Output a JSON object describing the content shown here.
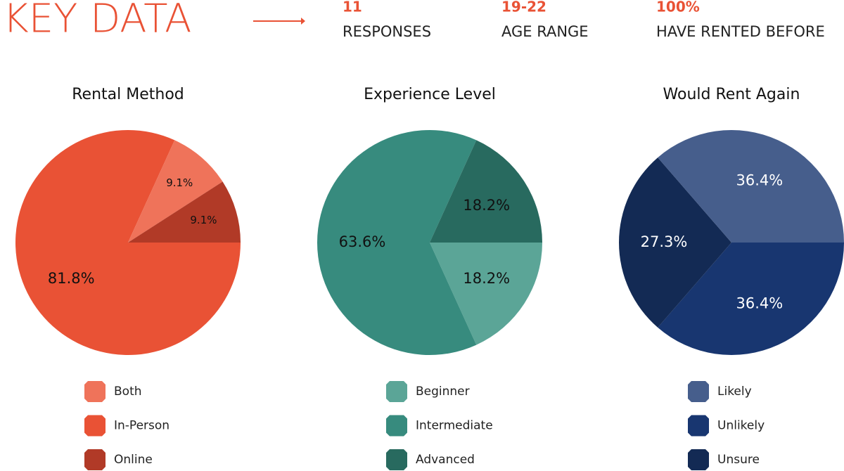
{
  "header": {
    "title": "KEY DATA",
    "stats": [
      {
        "value": "11",
        "label": "RESPONSES"
      },
      {
        "value": "19-22",
        "label": "AGE RANGE"
      },
      {
        "value": "100%",
        "label": "HAVE RENTED BEFORE"
      }
    ]
  },
  "chart_data": [
    {
      "type": "pie",
      "title": "Rental Method",
      "categories": [
        "Both",
        "In-Person",
        "Online"
      ],
      "values": [
        9.1,
        81.8,
        9.1
      ],
      "value_labels": [
        "9.1%",
        "81.8%",
        "9.1%"
      ],
      "colors": [
        "#ef735a",
        "#e95235",
        "#b13a27"
      ],
      "label_color": "#111111"
    },
    {
      "type": "pie",
      "title": "Experience Level",
      "categories": [
        "Beginner",
        "Intermediate",
        "Advanced"
      ],
      "values": [
        18.2,
        63.6,
        18.2
      ],
      "value_labels": [
        "18.2%",
        "63.6%",
        "18.2%"
      ],
      "colors": [
        "#5ba597",
        "#378b7e",
        "#286a5f"
      ],
      "label_color": "#111111"
    },
    {
      "type": "pie",
      "title": "Would Rent Again",
      "categories": [
        "Likely",
        "Unlikely",
        "Unsure"
      ],
      "values": [
        36.4,
        36.4,
        27.3
      ],
      "value_labels": [
        "36.4%",
        "36.4%",
        "27.3%"
      ],
      "colors": [
        "#465e8c",
        "#183670",
        "#132a54"
      ],
      "label_color": "#ffffff"
    }
  ]
}
